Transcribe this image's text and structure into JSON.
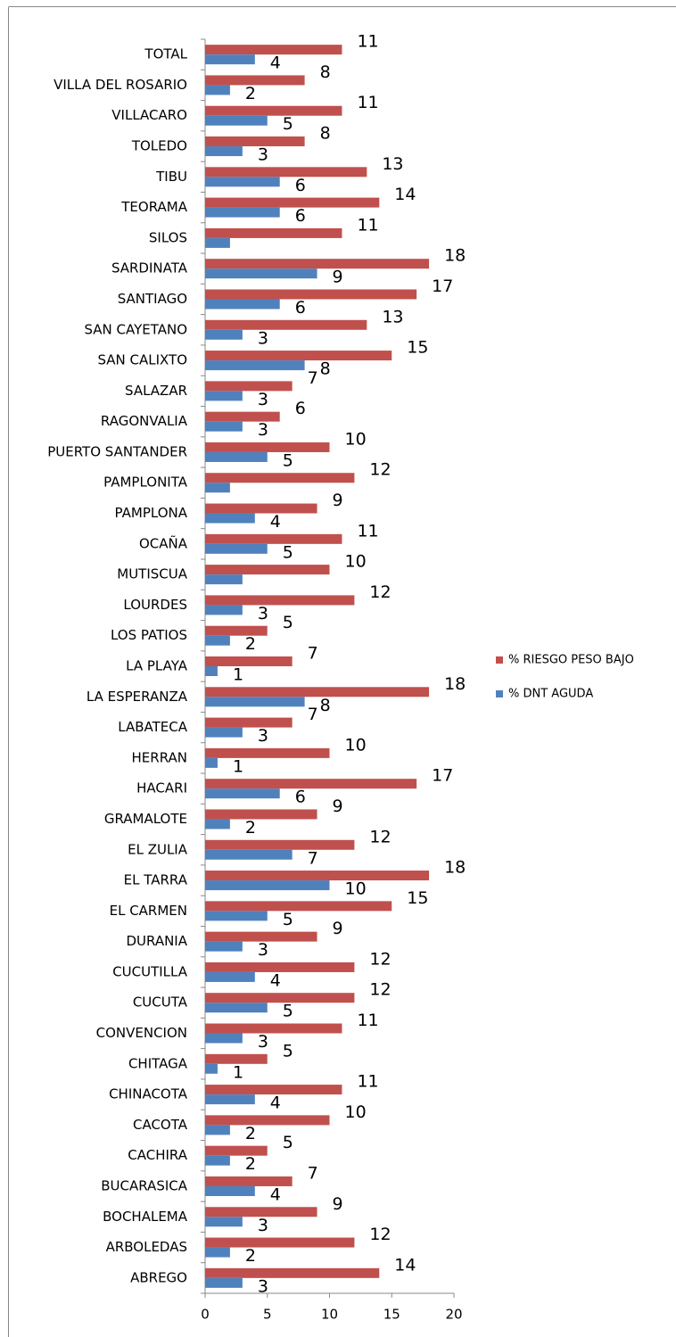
{
  "chart_data": {
    "type": "barh",
    "categories": [
      "TOTAL",
      "VILLA DEL ROSARIO",
      "VILLACARO",
      "TOLEDO",
      "TIBU",
      "TEORAMA",
      "SILOS",
      "SARDINATA",
      "SANTIAGO",
      "SAN CAYETANO",
      "SAN CALIXTO",
      "SALAZAR",
      "RAGONVALIA",
      "PUERTO SANTANDER",
      "PAMPLONITA",
      "PAMPLONA",
      "OCAÑA",
      "MUTISCUA",
      "LOURDES",
      "LOS PATIOS",
      "LA PLAYA",
      "LA ESPERANZA",
      "LABATECA",
      "HERRAN",
      "HACARI",
      "GRAMALOTE",
      "EL ZULIA",
      "EL TARRA",
      "EL CARMEN",
      "DURANIA",
      "CUCUTILLA",
      "CUCUTA",
      "CONVENCION",
      "CHITAGA",
      "CHINACOTA",
      "CACOTA",
      "CACHIRA",
      "BUCARASICA",
      "BOCHALEMA",
      "ARBOLEDAS",
      "ABREGO"
    ],
    "series": [
      {
        "name": "% RIESGO PESO BAJO",
        "color": "#c0504d",
        "values": [
          11,
          8,
          11,
          8,
          13,
          14,
          11,
          18,
          17,
          13,
          15,
          7,
          6,
          10,
          12,
          9,
          11,
          10,
          12,
          5,
          7,
          18,
          7,
          10,
          17,
          9,
          12,
          18,
          15,
          9,
          12,
          12,
          11,
          5,
          11,
          10,
          5,
          7,
          9,
          12,
          14
        ]
      },
      {
        "name": "% DNT AGUDA",
        "color": "#4f81bd",
        "values": [
          4,
          2,
          5,
          3,
          6,
          6,
          2,
          9,
          6,
          3,
          8,
          3,
          3,
          5,
          2,
          4,
          5,
          3,
          3,
          2,
          1,
          8,
          3,
          1,
          6,
          2,
          7,
          10,
          5,
          3,
          4,
          5,
          3,
          1,
          4,
          2,
          2,
          4,
          3,
          2,
          3
        ],
        "value_labels": [
          "4",
          "2",
          "5",
          "3",
          "6",
          "6",
          null,
          "9",
          "6",
          "3",
          "8",
          "3",
          "3",
          "5",
          null,
          "4",
          "5",
          null,
          "3",
          "2",
          "1",
          "8",
          "3",
          "1",
          "6",
          "2",
          "7",
          "10",
          "5",
          "3",
          "4",
          "5",
          "3",
          "1",
          "4",
          "2",
          "2",
          "4",
          "3",
          "2",
          "3"
        ]
      }
    ],
    "xlim": [
      0,
      20
    ],
    "xticks": [
      0,
      5,
      10,
      15,
      20
    ],
    "legend": "right"
  }
}
